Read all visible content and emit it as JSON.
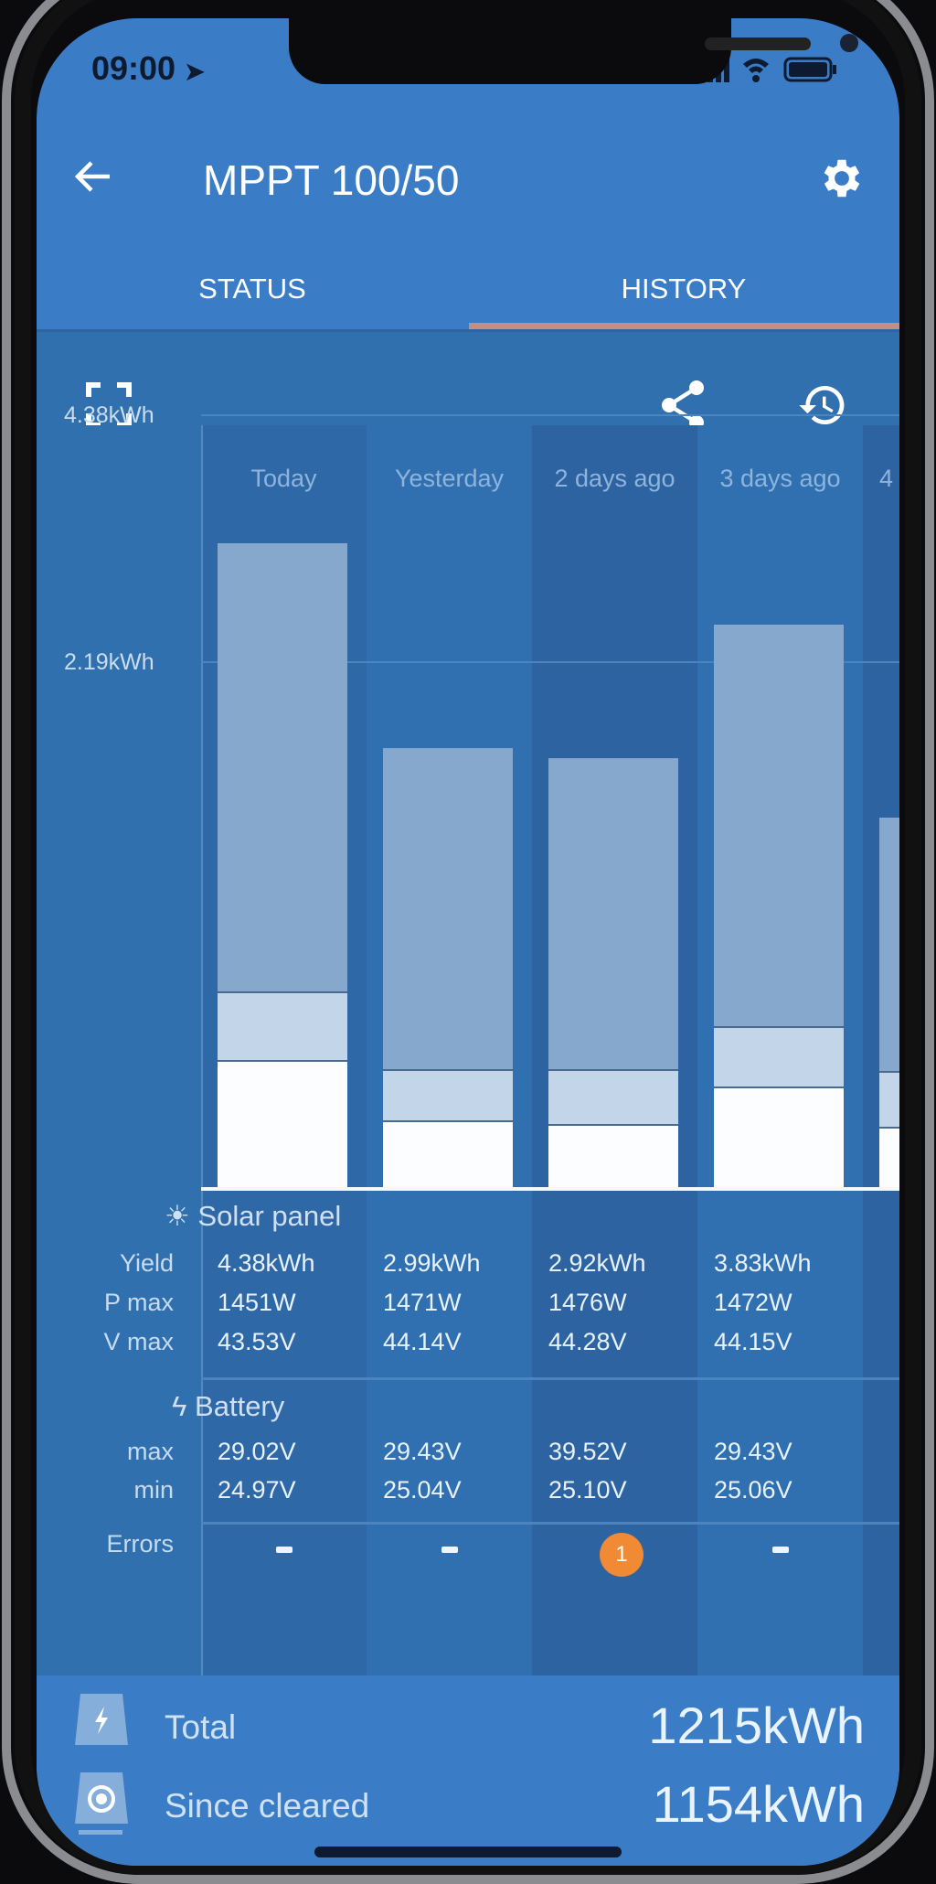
{
  "status_bar": {
    "time": "09:00"
  },
  "header": {
    "title": "MPPT 100/50",
    "back_icon": "arrow-left-icon",
    "settings_icon": "gear-icon"
  },
  "tabs": [
    {
      "label": "STATUS",
      "active": false
    },
    {
      "label": "HISTORY",
      "active": true
    }
  ],
  "toolbar": {
    "fullscreen_icon": "fullscreen-icon",
    "share_icon": "share-icon",
    "history_icon": "history-restore-icon"
  },
  "colors": {
    "accent_underline": "#c09088",
    "header_blue": "#3a7dc6",
    "chart_bg": "#2f68a6",
    "error_badge": "#f08a35",
    "segment_top": "#86a8cc",
    "segment_mid": "#c3d5e8",
    "segment_bottom": "#fbfdff"
  },
  "chart_data": {
    "type": "bar",
    "stacked": true,
    "categories": [
      "Today",
      "Yesterday",
      "2 days ago",
      "3 days ago",
      "4"
    ],
    "y_ticks": [
      "4.38kWh",
      "2.19kWh"
    ],
    "ylim": [
      0,
      4.38
    ],
    "y_unit": "kWh",
    "totals": [
      4.38,
      2.99,
      2.92,
      3.83,
      2.52
    ],
    "segments": [
      {
        "color": "#fbfdff",
        "values": [
          0.86,
          0.45,
          0.43,
          0.68,
          0.41
        ]
      },
      {
        "color": "#c3d5e8",
        "values": [
          0.47,
          0.35,
          0.37,
          0.41,
          0.38
        ]
      },
      {
        "color": "#86a8cc",
        "values": [
          3.05,
          2.19,
          2.12,
          2.74,
          1.73
        ]
      }
    ]
  },
  "table": {
    "solar_section": "Solar panel",
    "battery_section": "Battery",
    "row_labels": {
      "yield": "Yield",
      "pmax": "P max",
      "vmax": "V max",
      "bmax": "max",
      "bmin": "min",
      "errors": "Errors"
    },
    "columns": [
      {
        "yield": "4.38kWh",
        "pmax": "1451W",
        "vmax": "43.53V",
        "bmax": "29.02V",
        "bmin": "24.97V",
        "errors": "-"
      },
      {
        "yield": "2.99kWh",
        "pmax": "1471W",
        "vmax": "44.14V",
        "bmax": "29.43V",
        "bmin": "25.04V",
        "errors": "-"
      },
      {
        "yield": "2.92kWh",
        "pmax": "1476W",
        "vmax": "44.28V",
        "bmax": "39.52V",
        "bmin": "25.10V",
        "errors": "1"
      },
      {
        "yield": "3.83kWh",
        "pmax": "1472W",
        "vmax": "44.15V",
        "bmax": "29.43V",
        "bmin": "25.06V",
        "errors": "-"
      }
    ]
  },
  "totals": {
    "total_label": "Total",
    "total_value": "1215kWh",
    "since_label": "Since cleared",
    "since_value": "1154kWh"
  }
}
